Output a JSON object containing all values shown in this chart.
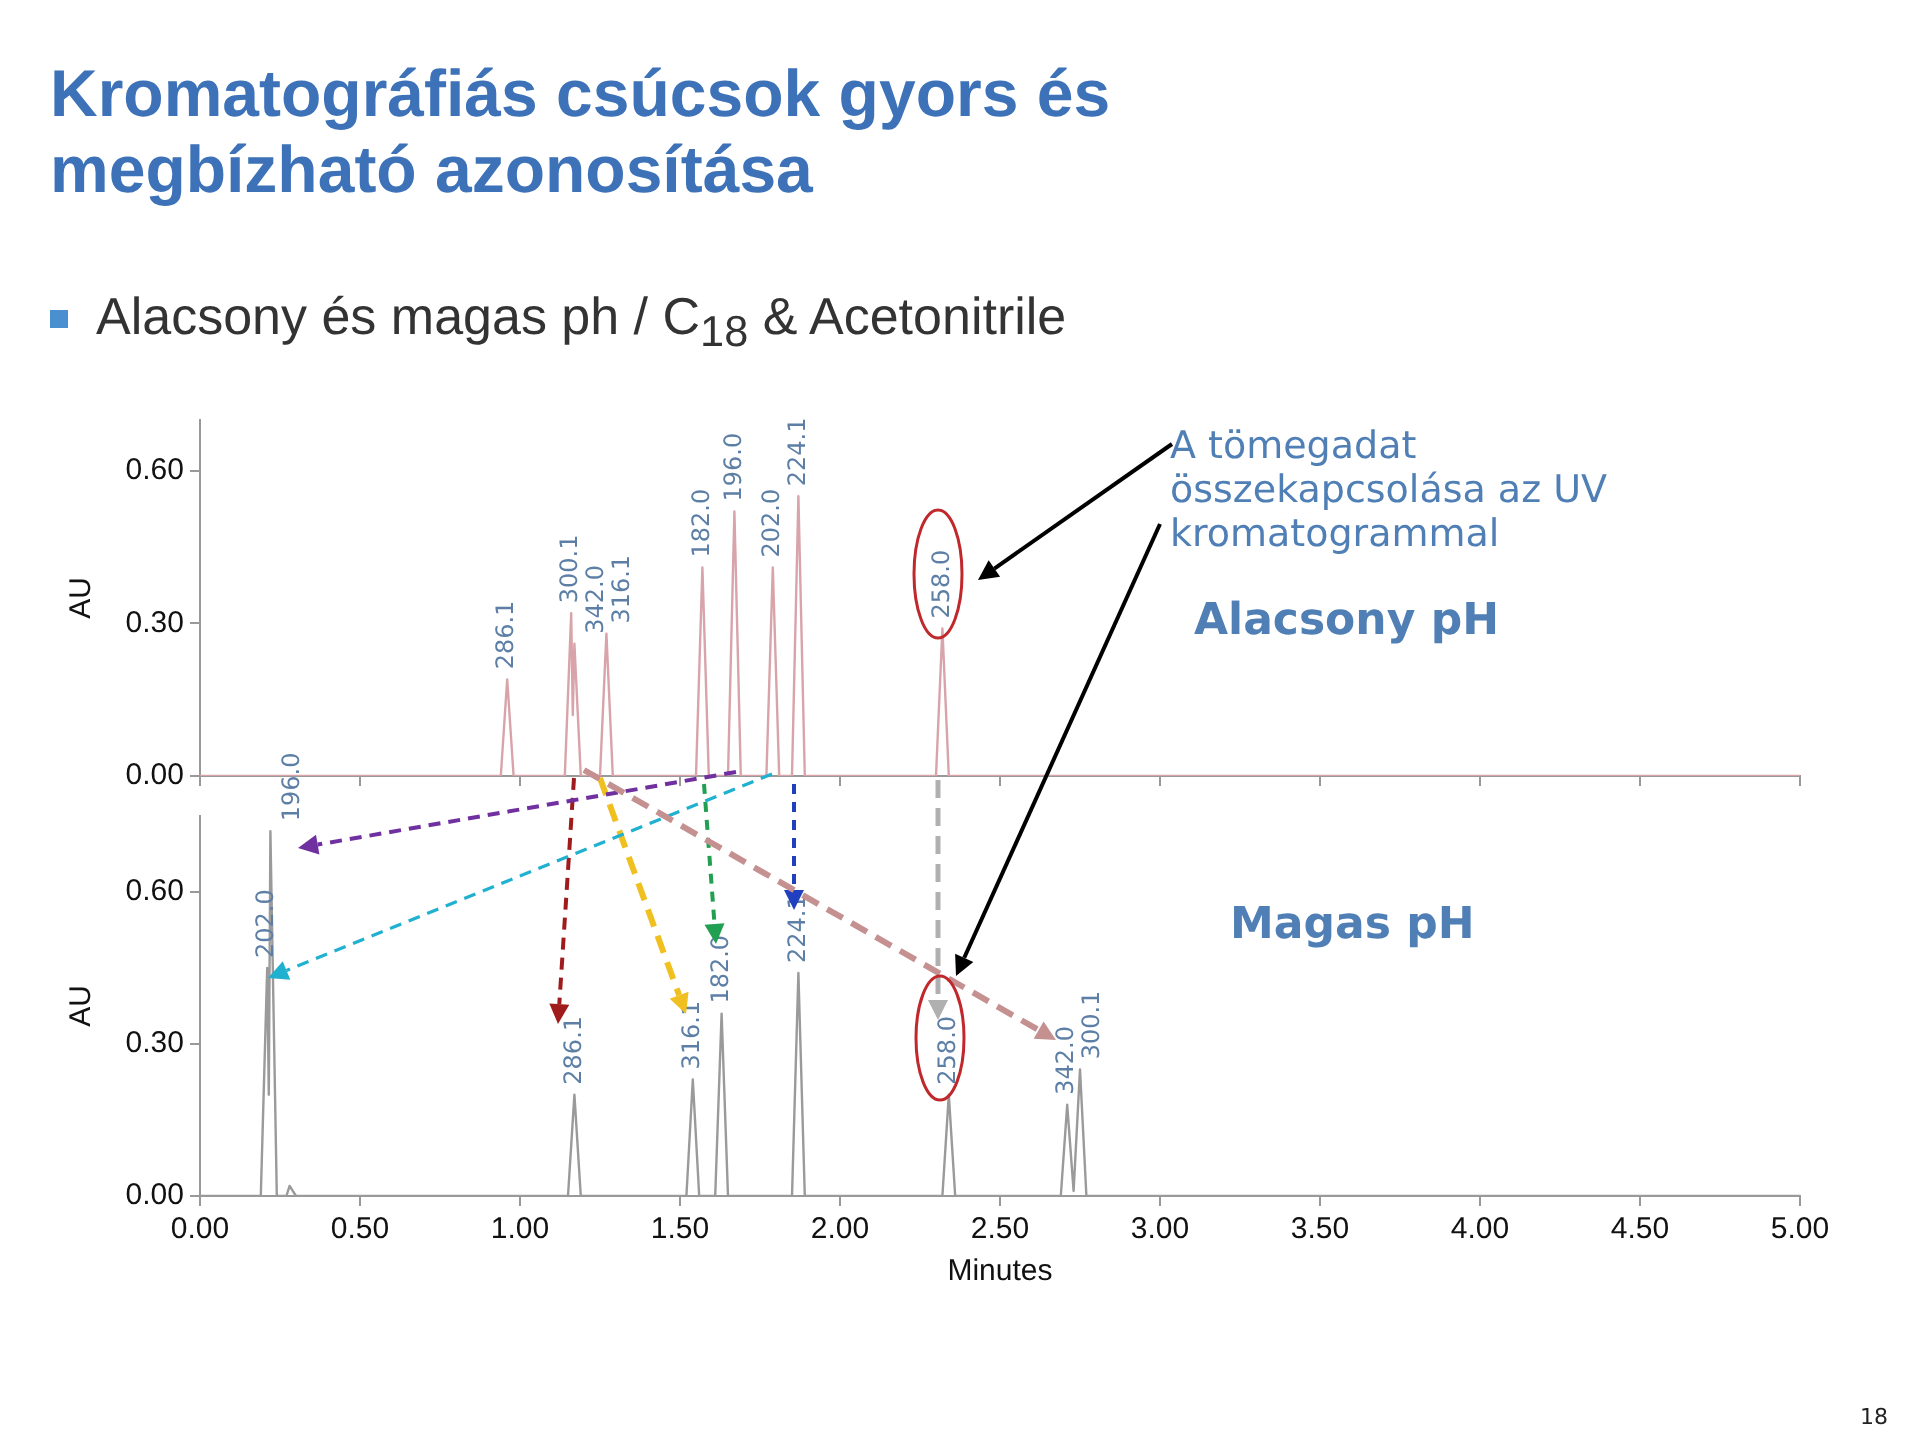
{
  "chart_data": [
    {
      "type": "line",
      "title": "Kromatográfiás csúcsok gyors és megbízható azonosítása",
      "subtitle": "Alacsony és magas ph / C$_{18}$ & Acetonitrile",
      "ylabel": "AU",
      "tick_labels": "y",
      "xlim": [
        0,
        5
      ],
      "xticks": [
        0,
        0.5,
        1,
        1.5,
        2,
        2.5,
        3,
        3.5,
        4,
        4.5,
        5
      ],
      "ylim": [
        0,
        0.7
      ],
      "yticks": [
        {
          "value": 0,
          "label": "0.00"
        },
        {
          "value": 0.3,
          "label": "0.30"
        },
        {
          "value": 0.6,
          "label": "0.60"
        }
      ],
      "series": [
        {
          "color": "#d8a4aa",
          "x": [
            0,
            0.94,
            0.96,
            0.98,
            1.14,
            1.16,
            1.165,
            1.17,
            1.19,
            1.25,
            1.27,
            1.29,
            1.55,
            1.57,
            1.59,
            1.65,
            1.67,
            1.69,
            1.77,
            1.79,
            1.81,
            1.85,
            1.87,
            1.89,
            2.3,
            2.32,
            2.34,
            5
          ],
          "values": [
            0,
            0,
            0.19,
            0,
            0,
            0.32,
            0.12,
            0.26,
            0,
            0,
            0.28,
            0,
            0,
            0.41,
            0,
            0,
            0.52,
            0,
            0,
            0.41,
            0,
            0,
            0.55,
            0,
            0,
            0.29,
            0,
            0
          ]
        }
      ],
      "annotations": [
        "Alacsony pH",
        "A tömegadat összekapcsolása az UV kromatogrammal",
        {
          "text": "286.1",
          "x": 0.96,
          "y": 0.19
        },
        {
          "text": "300.1",
          "x": 1.16,
          "y": 0.32
        },
        {
          "text": "342.0",
          "x": 1.17,
          "y": 0.26
        },
        {
          "text": "316.1",
          "x": 1.27,
          "y": 0.28
        },
        {
          "text": "182.0",
          "x": 1.57,
          "y": 0.41
        },
        {
          "text": "196.0",
          "x": 1.67,
          "y": 0.52
        },
        {
          "text": "202.0",
          "x": 1.79,
          "y": 0.41
        },
        {
          "text": "224.1",
          "x": 1.87,
          "y": 0.55
        },
        {
          "text": "258.0",
          "x": 2.32,
          "y": 0.29
        }
      ]
    },
    {
      "type": "line",
      "xlabel": "Minutes",
      "ylabel": "AU",
      "xlim": [
        0,
        5
      ],
      "xticks": [
        {
          "value": 0,
          "label": "0.00"
        },
        {
          "value": 0.5,
          "label": "0.50"
        },
        {
          "value": 1,
          "label": "1.00"
        },
        {
          "value": 1.5,
          "label": "1.50"
        },
        {
          "value": 2,
          "label": "2.00"
        },
        {
          "value": 2.5,
          "label": "2.50"
        },
        {
          "value": 3,
          "label": "3.00"
        },
        {
          "value": 3.5,
          "label": "3.50"
        },
        {
          "value": 4,
          "label": "4.00"
        },
        {
          "value": 4.5,
          "label": "4.50"
        },
        {
          "value": 5,
          "label": "5.00"
        }
      ],
      "ylim": [
        0,
        0.75
      ],
      "yticks": [
        {
          "value": 0,
          "label": "0.00"
        },
        {
          "value": 0.3,
          "label": "0.30"
        },
        {
          "value": 0.6,
          "label": "0.60"
        }
      ],
      "series": [
        {
          "color": "#9a9a9a",
          "x": [
            0,
            0.19,
            0.21,
            0.215,
            0.22,
            0.24,
            0.27,
            0.28,
            0.3,
            1.15,
            1.17,
            1.19,
            1.52,
            1.54,
            1.56,
            1.61,
            1.63,
            1.65,
            1.85,
            1.87,
            1.89,
            2.32,
            2.34,
            2.36,
            2.69,
            2.71,
            2.73,
            2.75,
            2.77,
            5
          ],
          "values": [
            0,
            0,
            0.45,
            0.2,
            0.72,
            0,
            0,
            0.02,
            0,
            0,
            0.2,
            0,
            0,
            0.23,
            0,
            0,
            0.36,
            0,
            0,
            0.44,
            0,
            0,
            0.2,
            0,
            0,
            0.18,
            0.01,
            0.25,
            0,
            0
          ]
        }
      ],
      "annotations": [
        "Magas pH",
        "18",
        {
          "text": "202.0",
          "x": 0.21,
          "y": 0.45
        },
        {
          "text": "196.0",
          "x": 0.22,
          "y": 0.72
        },
        {
          "text": "286.1",
          "x": 1.17,
          "y": 0.2
        },
        {
          "text": "316.1",
          "x": 1.54,
          "y": 0.23
        },
        {
          "text": "182.0",
          "x": 1.63,
          "y": 0.36
        },
        {
          "text": "224.1",
          "x": 1.87,
          "y": 0.44
        },
        {
          "text": "258.0",
          "x": 2.34,
          "y": 0.2
        },
        {
          "text": "342.0",
          "x": 2.71,
          "y": 0.18
        },
        {
          "text": "300.1",
          "x": 2.75,
          "y": 0.25
        }
      ]
    }
  ]
}
